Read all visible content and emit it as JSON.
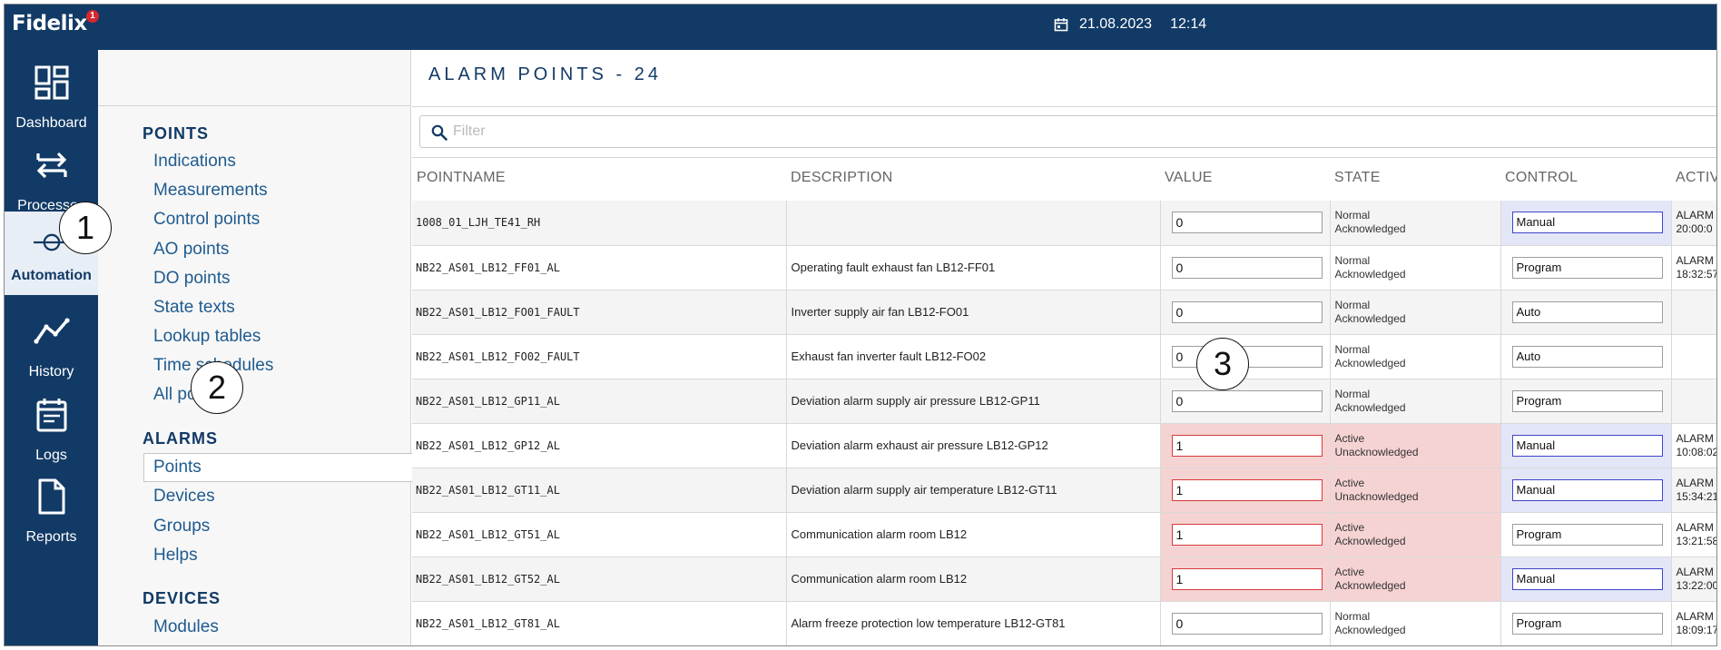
{
  "app": {
    "logo_text": "Fidelix",
    "logo_badge": "1"
  },
  "topbar": {
    "date": "21.08.2023",
    "time": "12:14"
  },
  "rail": [
    {
      "label": "Dashboard",
      "icon": "dashboard-icon"
    },
    {
      "label": "Processes",
      "icon": "processes-icon"
    },
    {
      "label": "Automation",
      "icon": "automation-icon",
      "active": true
    },
    {
      "label": "History",
      "icon": "history-icon"
    },
    {
      "label": "Logs",
      "icon": "logs-icon"
    },
    {
      "label": "Reports",
      "icon": "reports-icon"
    }
  ],
  "submenu": {
    "points_title": "POINTS",
    "points": [
      "Indications",
      "Measurements",
      "Control points",
      "AO points",
      "DO points",
      "State texts",
      "Lookup tables",
      "Time schedules",
      "All points"
    ],
    "alarms_title": "ALARMS",
    "alarms": [
      "Points",
      "Devices",
      "Groups",
      "Helps"
    ],
    "devices_title": "DEVICES",
    "devices": [
      "Modules"
    ]
  },
  "main": {
    "title": "ALARM POINTS - 24",
    "filter_placeholder": "Filter",
    "columns": [
      "POINTNAME",
      "DESCRIPTION",
      "VALUE",
      "STATE",
      "CONTROL",
      "ACTIV"
    ]
  },
  "rows": [
    {
      "name": "1008_01_LJH_TE41_RH",
      "desc": "",
      "value": "0",
      "state1": "Normal",
      "state2": "Acknowledged",
      "control": "Manual",
      "act1": "ALARM C",
      "act2": "20:00:0",
      "alarm": false,
      "manual": true
    },
    {
      "name": "NB22_AS01_LB12_FF01_AL",
      "desc": "Operating fault exhaust fan LB12-FF01",
      "value": "0",
      "state1": "Normal",
      "state2": "Acknowledged",
      "control": "Program",
      "act1": "ALARM C",
      "act2": "18:32:57",
      "alarm": false,
      "manual": false
    },
    {
      "name": "NB22_AS01_LB12_FO01_FAULT",
      "desc": "Inverter supply air fan LB12-FO01",
      "value": "0",
      "state1": "Normal",
      "state2": "Acknowledged",
      "control": "Auto",
      "act1": "",
      "act2": "",
      "alarm": false,
      "manual": false
    },
    {
      "name": "NB22_AS01_LB12_FO02_FAULT",
      "desc": "Exhaust fan inverter fault LB12-FO02",
      "value": "0",
      "state1": "Normal",
      "state2": "Acknowledged",
      "control": "Auto",
      "act1": "",
      "act2": "",
      "alarm": false,
      "manual": false
    },
    {
      "name": "NB22_AS01_LB12_GP11_AL",
      "desc": "Deviation alarm supply air pressure LB12-GP11",
      "value": "0",
      "state1": "Normal",
      "state2": "Acknowledged",
      "control": "Program",
      "act1": "",
      "act2": "",
      "alarm": false,
      "manual": false
    },
    {
      "name": "NB22_AS01_LB12_GP12_AL",
      "desc": "Deviation alarm exhaust air pressure LB12-GP12",
      "value": "1",
      "state1": "Active",
      "state2": "Unacknowledged",
      "control": "Manual",
      "act1": "ALARM C",
      "act2": "10:08:02",
      "alarm": true,
      "manual": true
    },
    {
      "name": "NB22_AS01_LB12_GT11_AL",
      "desc": "Deviation alarm supply air temperature LB12-GT11",
      "value": "1",
      "state1": "Active",
      "state2": "Unacknowledged",
      "control": "Manual",
      "act1": "ALARM C",
      "act2": "15:34:21",
      "alarm": true,
      "manual": true
    },
    {
      "name": "NB22_AS01_LB12_GT51_AL",
      "desc": "Communication alarm room LB12",
      "value": "1",
      "state1": "Active",
      "state2": "Acknowledged",
      "control": "Program",
      "act1": "ALARM C",
      "act2": "13:21:58",
      "alarm": true,
      "manual": false
    },
    {
      "name": "NB22_AS01_LB12_GT52_AL",
      "desc": "Communication alarm room LB12",
      "value": "1",
      "state1": "Active",
      "state2": "Acknowledged",
      "control": "Manual",
      "act1": "ALARM C",
      "act2": "13:22:00",
      "alarm": true,
      "manual": true
    },
    {
      "name": "NB22_AS01_LB12_GT81_AL",
      "desc": "Alarm freeze protection low temperature LB12-GT81",
      "value": "0",
      "state1": "Normal",
      "state2": "Acknowledged",
      "control": "Program",
      "act1": "ALARM C",
      "act2": "18:09:17",
      "alarm": false,
      "manual": false
    }
  ],
  "callouts": [
    "1",
    "2",
    "3"
  ],
  "colors": {
    "nav_bg": "#123a66",
    "link": "#1f5b8f",
    "alarm_bg": "#f6d3d3",
    "manual_bg": "#e3e6f7"
  }
}
